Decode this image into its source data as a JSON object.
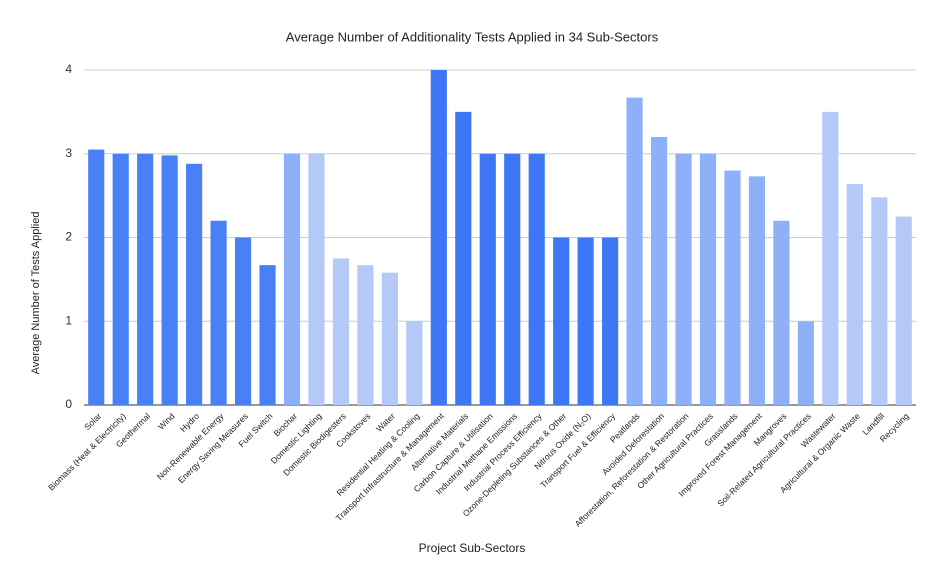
{
  "chart_data": {
    "type": "bar",
    "title": "Average Number of Additionality Tests Applied in 34 Sub-Sectors",
    "x_label": "Project Sub-Sectors",
    "y_label": "Average Number of Tests Applied",
    "categories": [
      "Solar",
      "Biomass (Heat & Electricity)",
      "Geothermal",
      "Wind",
      "Hydro",
      "Non-Renewable Energy",
      "Energy Saving Measures",
      "Fuel Switch",
      "Biochar",
      "Domestic Lighting",
      "Domestic Biodigesters",
      "Cookstoves",
      "Water",
      "Residential Heating & Cooling",
      "Transport Infrastructure & Management",
      "Alternative Materials",
      "Carbon Capture & Utilisation",
      "Industrial Methane Emissions",
      "Industrial Process Efficiency",
      "Ozone-Depleting Substances & Other",
      "Nitrous Oxide (N₂O)",
      "Transport Fuel & Efficiency",
      "Peatlands",
      "Avoided Deforestation",
      "Afforestation, Reforestation & Restoration",
      "Other Agricultural Practices",
      "Grasslands",
      "Improved Forest Management",
      "Mangroves",
      "Soil-Related Agricultural Practices",
      "Wastewater",
      "Agricultural & Organic Waste",
      "Landfill",
      "Recycling"
    ],
    "values": [
      3.05,
      3.0,
      3.0,
      2.98,
      2.88,
      2.2,
      2.0,
      1.67,
      3.0,
      3.0,
      1.75,
      1.67,
      1.58,
      1.0,
      4.0,
      3.5,
      3.0,
      3.0,
      3.0,
      2.0,
      2.0,
      2.0,
      3.67,
      3.2,
      3.0,
      3.0,
      2.8,
      2.73,
      2.2,
      1.0,
      3.5,
      2.64,
      2.48,
      2.25
    ],
    "colors": [
      "#4a80f6",
      "#4a80f6",
      "#4a80f6",
      "#4a80f6",
      "#4a80f6",
      "#4a80f6",
      "#4a80f6",
      "#4a80f6",
      "#8eb0f8",
      "#b4c9f8",
      "#b4c9f8",
      "#b4c9f8",
      "#b4c9f8",
      "#b4c9f8",
      "#3d77f5",
      "#3d77f5",
      "#3d77f5",
      "#3d77f5",
      "#3d77f5",
      "#3d77f5",
      "#3d77f5",
      "#3d77f5",
      "#8eb0f8",
      "#8eb0f8",
      "#8eb0f8",
      "#8eb0f8",
      "#8eb0f8",
      "#8eb0f8",
      "#8eb0f8",
      "#8eb0f8",
      "#b4c9f8",
      "#b4c9f8",
      "#b4c9f8",
      "#b4c9f8"
    ],
    "ylim": [
      0,
      4
    ],
    "yticks": [
      0,
      1,
      2,
      3,
      4
    ],
    "grid": true
  }
}
